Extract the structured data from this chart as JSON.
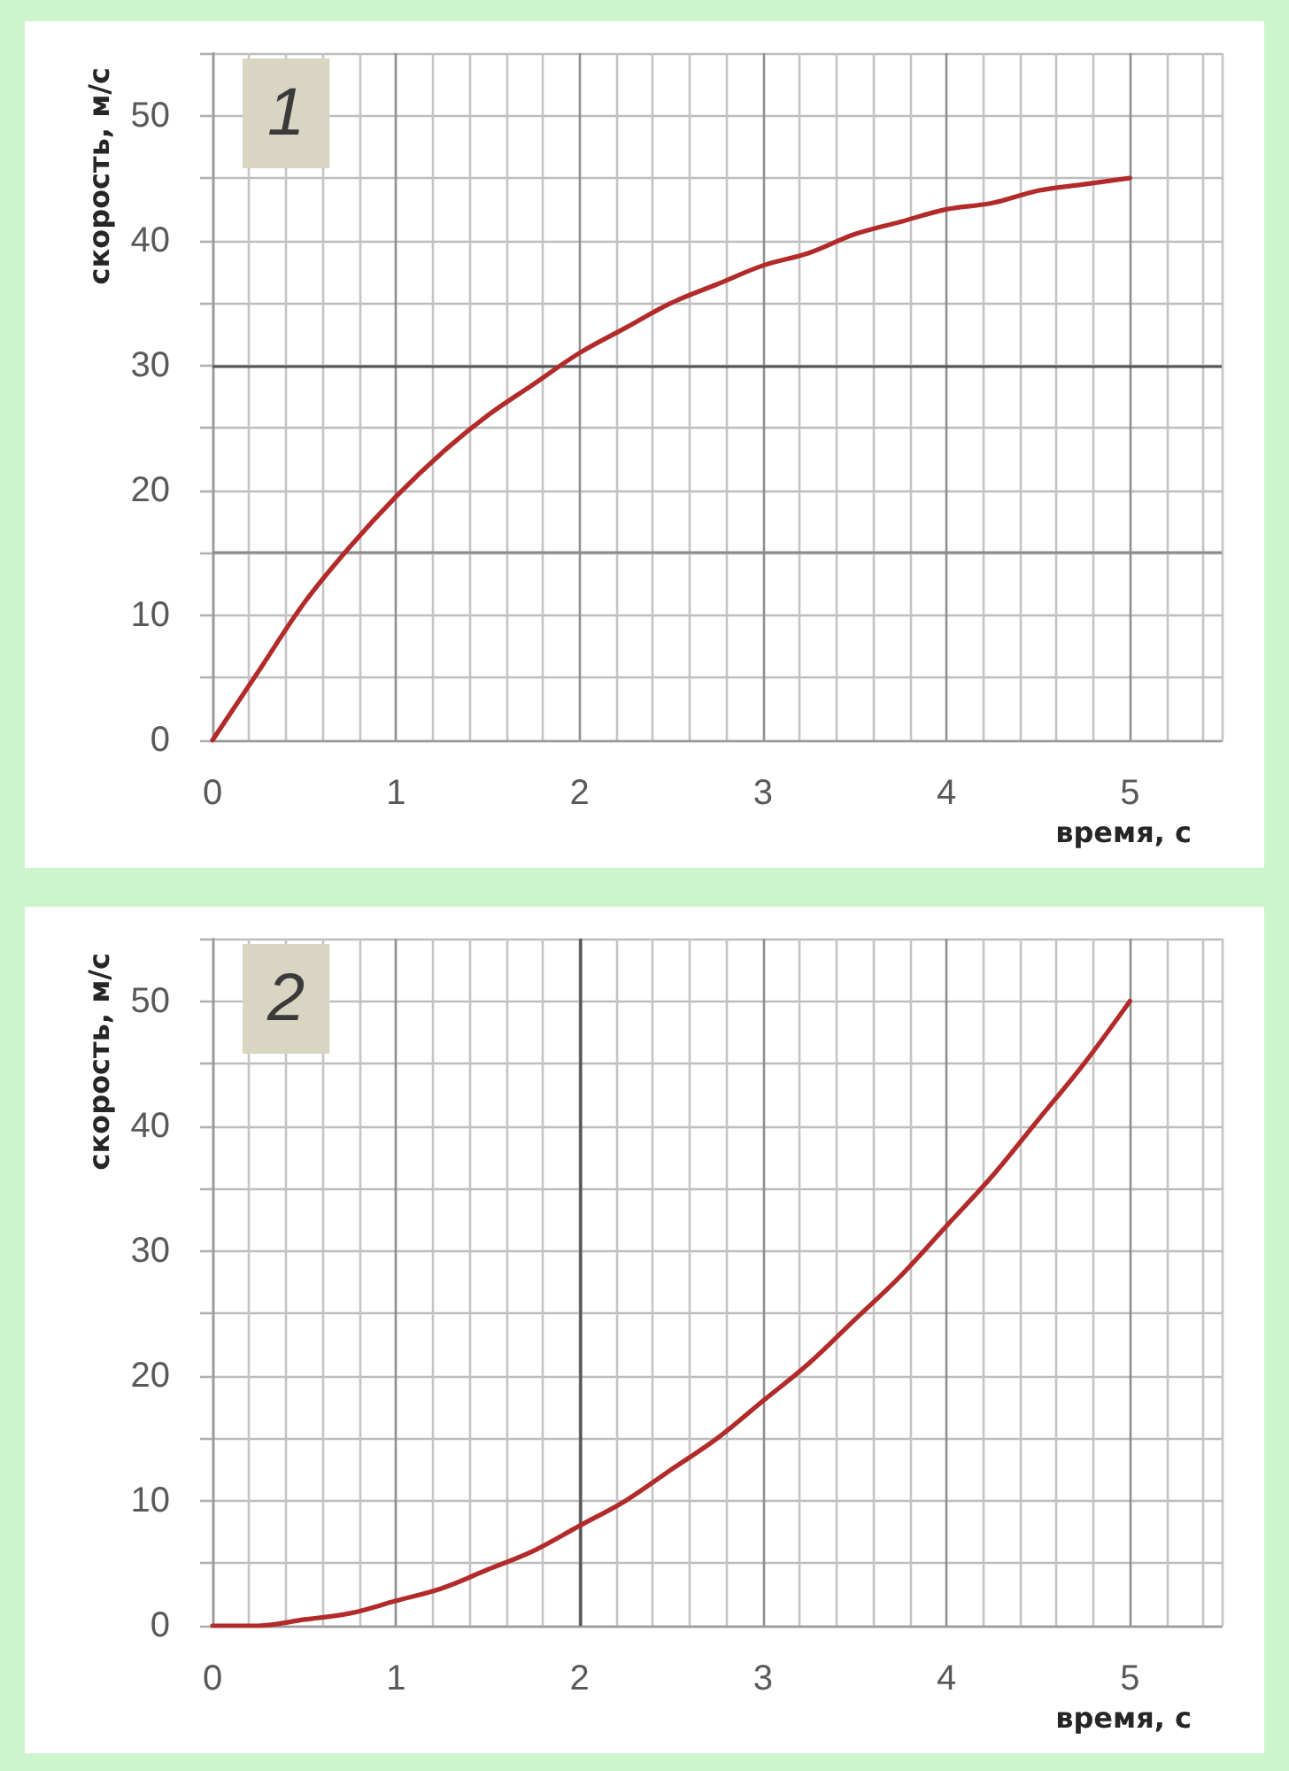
{
  "chart_data": [
    {
      "type": "line",
      "title": "1",
      "xlabel": "время, с",
      "ylabel": "скорость, м/с",
      "x": [
        0,
        0.25,
        0.5,
        0.75,
        1,
        1.25,
        1.5,
        1.75,
        2,
        2.25,
        2.5,
        2.75,
        3,
        3.25,
        3.5,
        3.75,
        4,
        4.25,
        4.5,
        4.75,
        5
      ],
      "series": [
        {
          "color": "#b22a2a",
          "values": [
            0,
            5.5,
            11,
            15.5,
            19.5,
            23,
            26,
            28.5,
            31,
            33,
            35,
            36.5,
            38,
            39,
            40.5,
            41.5,
            42.5,
            43,
            44,
            44.5,
            45
          ]
        }
      ],
      "xlim": [
        0,
        5.5
      ],
      "xticks": [
        0,
        1,
        2,
        3,
        4,
        5
      ],
      "ylim": [
        0,
        55
      ],
      "yticks": [
        0,
        10,
        20,
        30,
        40,
        50
      ],
      "grid": true,
      "marker": "none",
      "line_style": "solid",
      "ref_lines": [
        {
          "axis": "y",
          "value": 30,
          "color": "#555555"
        },
        {
          "axis": "y",
          "value": 15,
          "color": "#8c8c8c"
        }
      ]
    },
    {
      "type": "line",
      "title": "2",
      "xlabel": "время, с",
      "ylabel": "скорость, м/с",
      "x": [
        0,
        0.25,
        0.5,
        0.75,
        1,
        1.25,
        1.5,
        1.75,
        2,
        2.25,
        2.5,
        2.75,
        3,
        3.25,
        3.5,
        3.75,
        4,
        4.25,
        4.5,
        4.75,
        5
      ],
      "series": [
        {
          "color": "#b22a2a",
          "values": [
            0,
            0,
            0.5,
            1,
            2,
            3,
            4.5,
            6,
            8,
            10,
            12.5,
            15,
            18,
            21,
            24.5,
            28,
            32,
            36,
            40.5,
            45,
            50
          ]
        }
      ],
      "xlim": [
        0,
        5.5
      ],
      "xticks": [
        0,
        1,
        2,
        3,
        4,
        5
      ],
      "ylim": [
        0,
        55
      ],
      "yticks": [
        0,
        10,
        20,
        30,
        40,
        50
      ],
      "grid": true,
      "marker": "none",
      "line_style": "solid",
      "ref_lines": [
        {
          "axis": "x",
          "value": 2,
          "color": "#555555"
        }
      ]
    }
  ]
}
